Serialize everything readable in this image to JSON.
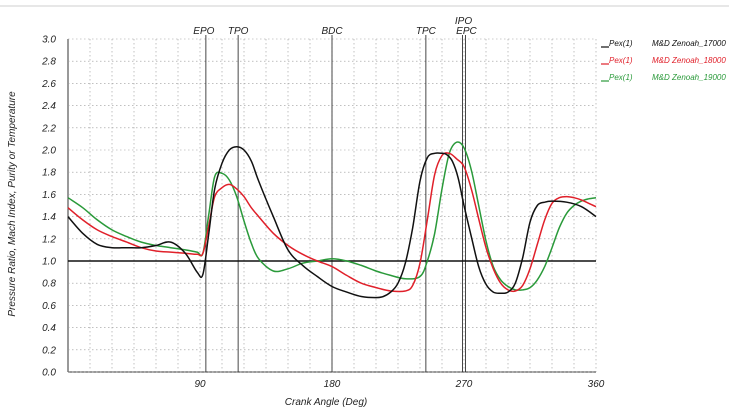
{
  "chart_data": {
    "type": "line",
    "xlabel": "Crank Angle (Deg)",
    "ylabel": "Pressure Ratio, Mach Index, Purity or Temperature",
    "xlim": [
      0,
      360
    ],
    "ylim": [
      0,
      3.0
    ],
    "xticks": [
      90,
      180,
      270,
      360
    ],
    "xtick_labels": [
      "90",
      "180",
      "270",
      "360"
    ],
    "yticks": [
      0.0,
      0.2,
      0.4,
      0.6,
      0.8,
      1.0,
      1.2,
      1.4,
      1.6,
      1.8,
      2.0,
      2.2,
      2.4,
      2.6,
      2.8,
      3.0
    ],
    "ytick_labels": [
      "0.0",
      "0.2",
      "0.4",
      "0.6",
      "0.8",
      "1.0",
      "1.2",
      "1.4",
      "1.6",
      "1.8",
      "2.0",
      "2.2",
      "2.4",
      "2.6",
      "2.8",
      "3.0"
    ],
    "grid": true,
    "reference_line": 1.0,
    "event_markers": [
      {
        "label": "EPO",
        "x": 94
      },
      {
        "label": "TPO",
        "x": 116
      },
      {
        "label": "BDC",
        "x": 180
      },
      {
        "label": "TPC",
        "x": 244
      },
      {
        "label": "IPO",
        "x": 269
      },
      {
        "label": "EPC",
        "x": 271
      }
    ],
    "legend_position": "top-right",
    "series": [
      {
        "name": "Pex(1)",
        "case": "M&D Zenoah_17000",
        "color": "#111111",
        "x": [
          0,
          10,
          20,
          30,
          40,
          50,
          60,
          70,
          80,
          88,
          92,
          96,
          100,
          105,
          110,
          115,
          120,
          125,
          130,
          140,
          150,
          160,
          170,
          180,
          190,
          200,
          210,
          215,
          220,
          225,
          230,
          235,
          240,
          245,
          250,
          255,
          258,
          262,
          266,
          270,
          275,
          280,
          285,
          290,
          295,
          300,
          305,
          310,
          315,
          320,
          325,
          330,
          340,
          350,
          360
        ],
        "y": [
          1.4,
          1.25,
          1.15,
          1.12,
          1.12,
          1.12,
          1.14,
          1.17,
          1.07,
          0.9,
          0.88,
          1.25,
          1.65,
          1.88,
          2.0,
          2.03,
          2.0,
          1.9,
          1.72,
          1.4,
          1.1,
          0.96,
          0.86,
          0.77,
          0.72,
          0.68,
          0.67,
          0.68,
          0.72,
          0.8,
          0.98,
          1.3,
          1.72,
          1.93,
          1.97,
          1.97,
          1.96,
          1.9,
          1.75,
          1.5,
          1.22,
          0.95,
          0.79,
          0.72,
          0.71,
          0.72,
          0.8,
          1.03,
          1.35,
          1.5,
          1.53,
          1.54,
          1.53,
          1.49,
          1.4
        ]
      },
      {
        "name": "Pex(1)",
        "case": "M&D Zenoah_18000",
        "color": "#e0202a",
        "x": [
          0,
          10,
          20,
          30,
          40,
          50,
          60,
          70,
          80,
          88,
          92,
          96,
          100,
          105,
          110,
          115,
          120,
          125,
          130,
          140,
          150,
          160,
          170,
          180,
          190,
          200,
          210,
          220,
          230,
          235,
          240,
          245,
          250,
          255,
          260,
          265,
          270,
          275,
          280,
          285,
          290,
          295,
          300,
          305,
          310,
          315,
          320,
          325,
          330,
          335,
          340,
          345,
          350,
          355,
          360
        ],
        "y": [
          1.48,
          1.37,
          1.28,
          1.22,
          1.17,
          1.12,
          1.09,
          1.08,
          1.07,
          1.06,
          1.07,
          1.32,
          1.58,
          1.66,
          1.69,
          1.65,
          1.58,
          1.48,
          1.4,
          1.25,
          1.14,
          1.06,
          1.0,
          0.95,
          0.87,
          0.8,
          0.76,
          0.73,
          0.73,
          0.78,
          0.98,
          1.37,
          1.78,
          1.95,
          1.97,
          1.92,
          1.85,
          1.65,
          1.38,
          1.12,
          0.93,
          0.8,
          0.74,
          0.73,
          0.78,
          0.93,
          1.15,
          1.37,
          1.52,
          1.57,
          1.58,
          1.57,
          1.55,
          1.52,
          1.49
        ]
      },
      {
        "name": "Pex(1)",
        "case": "M&D Zenoah_19000",
        "color": "#2a9a3a",
        "x": [
          0,
          10,
          20,
          30,
          40,
          50,
          60,
          70,
          80,
          88,
          92,
          96,
          100,
          105,
          110,
          115,
          120,
          125,
          130,
          140,
          150,
          160,
          170,
          180,
          190,
          200,
          210,
          220,
          230,
          240,
          245,
          250,
          255,
          260,
          265,
          270,
          275,
          280,
          285,
          290,
          295,
          300,
          305,
          310,
          315,
          320,
          325,
          330,
          335,
          340,
          345,
          350,
          355,
          360
        ],
        "y": [
          1.57,
          1.48,
          1.37,
          1.28,
          1.22,
          1.17,
          1.14,
          1.12,
          1.1,
          1.08,
          1.07,
          1.42,
          1.76,
          1.79,
          1.73,
          1.58,
          1.36,
          1.16,
          1.02,
          0.91,
          0.93,
          0.98,
          1.0,
          1.02,
          1.0,
          0.96,
          0.91,
          0.87,
          0.84,
          0.86,
          1.0,
          1.25,
          1.65,
          1.97,
          2.07,
          2.02,
          1.82,
          1.5,
          1.18,
          0.95,
          0.83,
          0.77,
          0.74,
          0.74,
          0.76,
          0.83,
          0.95,
          1.12,
          1.3,
          1.43,
          1.5,
          1.54,
          1.56,
          1.57
        ]
      }
    ]
  }
}
